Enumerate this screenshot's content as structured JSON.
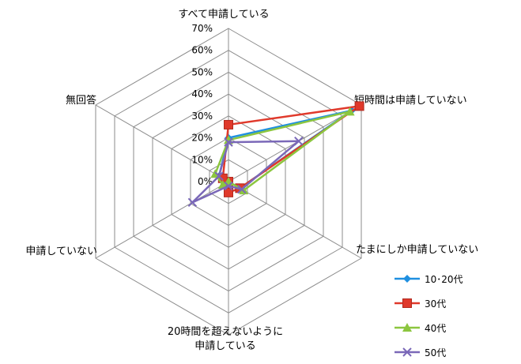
{
  "chart_data": {
    "type": "radar",
    "axes": [
      [
        "すべて申請している"
      ],
      [
        "短時間は申請していない"
      ],
      [
        "たまにしか申請していない"
      ],
      [
        "20時間を超えないように",
        "申請している"
      ],
      [
        "申請していない"
      ],
      [
        "無回答"
      ]
    ],
    "ticks": [
      "0%",
      "10%",
      "20%",
      "30%",
      "40%",
      "50%",
      "60%",
      "70%"
    ],
    "tick_values": [
      0,
      10,
      20,
      30,
      40,
      50,
      60,
      70
    ],
    "range": [
      0,
      70
    ],
    "legend_position": "bottom-right",
    "series": [
      {
        "name": "10･20代",
        "color": "#1f8fe0",
        "marker": "diamond",
        "values": [
          20,
          65,
          6,
          0,
          0,
          5
        ]
      },
      {
        "name": "30代",
        "color": "#e0392b",
        "marker": "square",
        "values": [
          26,
          69,
          6,
          5,
          0,
          3
        ]
      },
      {
        "name": "40代",
        "color": "#8cc63f",
        "marker": "triangle",
        "values": [
          19,
          64,
          8,
          0,
          3,
          7
        ]
      },
      {
        "name": "50代",
        "color": "#7a68b8",
        "marker": "x",
        "values": [
          18,
          37,
          7,
          2,
          19,
          5
        ]
      }
    ]
  }
}
